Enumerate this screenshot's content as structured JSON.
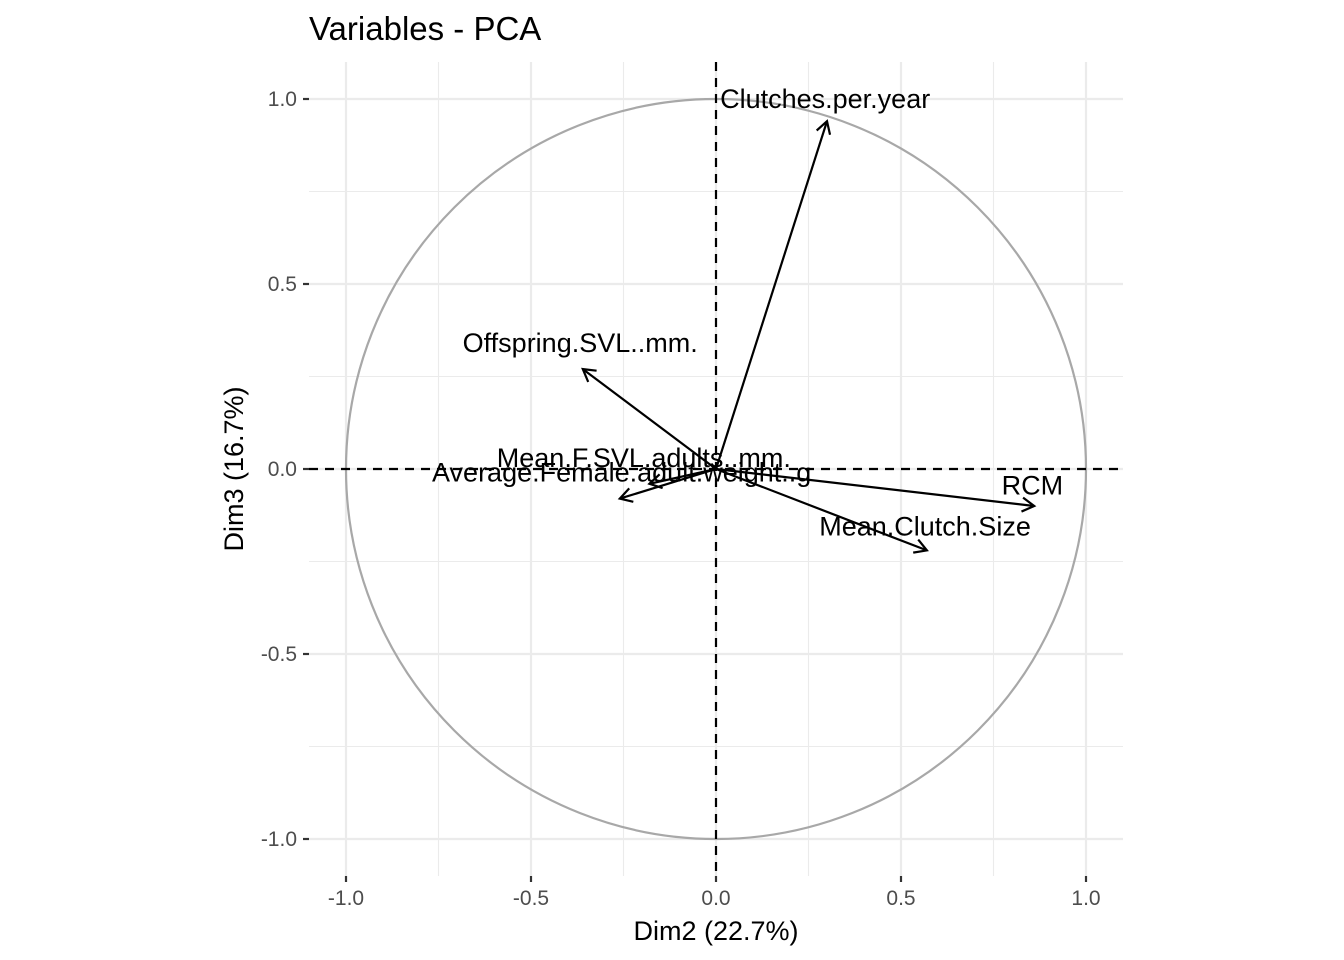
{
  "chart_data": {
    "type": "scatter",
    "subtype": "pca-variable-correlation-circle",
    "title": "Variables - PCA",
    "xlabel": "Dim2 (22.7%)",
    "ylabel": "Dim3 (16.7%)",
    "xlim": [
      -1.1,
      1.1
    ],
    "ylim": [
      -1.1,
      1.1
    ],
    "x_ticks": [
      -1.0,
      -0.5,
      0.0,
      0.5,
      1.0
    ],
    "y_ticks": [
      -1.0,
      -0.5,
      0.0,
      0.5,
      1.0
    ],
    "x_tick_labels": [
      "-1.0",
      "-0.5",
      "0.0",
      "0.5",
      "1.0"
    ],
    "y_tick_labels": [
      "-1.0",
      "-0.5",
      "0.0",
      "0.5",
      "1.0"
    ],
    "grid": true,
    "unit_circle": true,
    "reference_lines": {
      "x": 0,
      "y": 0
    },
    "variables": [
      {
        "name": "Clutches.per.year",
        "x": 0.3,
        "y": 0.94
      },
      {
        "name": "Offspring.SVL..mm.",
        "x": -0.36,
        "y": 0.27
      },
      {
        "name": "Mean.F.SVL.adults..mm.",
        "x": -0.18,
        "y": -0.04
      },
      {
        "name": "Average.Female.adult.weight..g",
        "x": -0.26,
        "y": -0.08
      },
      {
        "name": "RCM",
        "x": 0.86,
        "y": -0.1
      },
      {
        "name": "Mean.Clutch.Size",
        "x": 0.57,
        "y": -0.22
      }
    ],
    "colors": {
      "arrow": "#000000",
      "circle": "#a8a8a8",
      "grid": "#ebebeb",
      "tick_label": "#4d4d4d"
    }
  }
}
